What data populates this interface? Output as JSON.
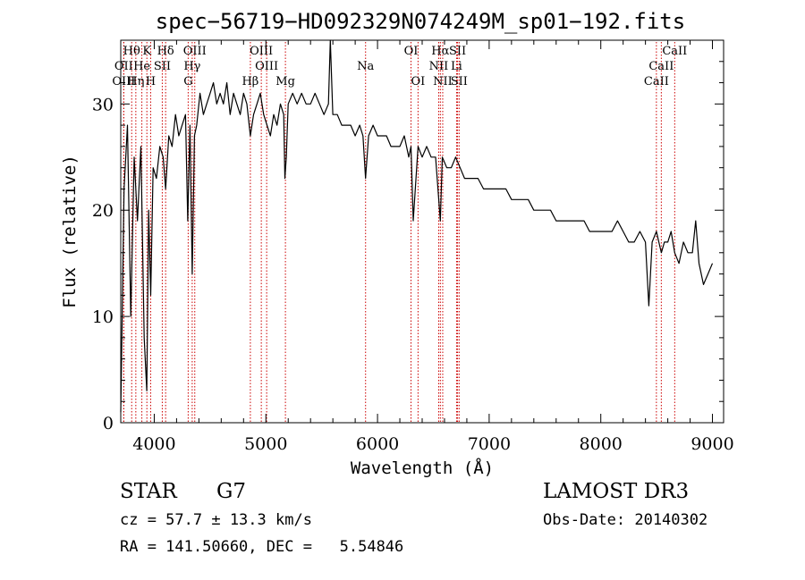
{
  "chart_data": {
    "type": "line",
    "title": "spec−56719−HD092329N074249M_sp01−192.fits",
    "xlabel": "Wavelength (Å)",
    "ylabel": "Flux (relative)",
    "xlim": [
      3700,
      9100
    ],
    "ylim": [
      0,
      36
    ],
    "xticks": [
      4000,
      5000,
      6000,
      7000,
      8000,
      9000
    ],
    "xtick_labels": [
      "4000",
      "5000",
      "6000",
      "7000",
      "8000",
      "9000"
    ],
    "yticks": [
      0,
      10,
      20,
      30
    ],
    "ytick_labels": [
      "0",
      "10",
      "20",
      "30"
    ],
    "series": [
      {
        "name": "spectrum",
        "x": [
          3700,
          3730,
          3760,
          3790,
          3820,
          3850,
          3880,
          3910,
          3933,
          3950,
          3968,
          3990,
          4020,
          4050,
          4080,
          4102,
          4130,
          4160,
          4190,
          4220,
          4250,
          4280,
          4300,
          4320,
          4340,
          4360,
          4380,
          4410,
          4440,
          4470,
          4500,
          4530,
          4560,
          4590,
          4620,
          4650,
          4680,
          4710,
          4740,
          4770,
          4800,
          4830,
          4861,
          4890,
          4920,
          4950,
          4980,
          5010,
          5040,
          5070,
          5100,
          5130,
          5160,
          5170,
          5183,
          5200,
          5240,
          5280,
          5320,
          5360,
          5400,
          5440,
          5480,
          5520,
          5560,
          5577,
          5600,
          5640,
          5680,
          5720,
          5760,
          5800,
          5840,
          5870,
          5893,
          5920,
          5960,
          6000,
          6040,
          6080,
          6120,
          6160,
          6200,
          6240,
          6280,
          6300,
          6320,
          6363,
          6400,
          6440,
          6480,
          6520,
          6563,
          6580,
          6620,
          6660,
          6700,
          6740,
          6780,
          6820,
          6860,
          6900,
          6950,
          7000,
          7050,
          7100,
          7150,
          7200,
          7250,
          7300,
          7350,
          7400,
          7450,
          7500,
          7550,
          7600,
          7650,
          7700,
          7750,
          7800,
          7850,
          7900,
          7950,
          8000,
          8050,
          8100,
          8150,
          8200,
          8250,
          8300,
          8350,
          8400,
          8430,
          8460,
          8498,
          8520,
          8542,
          8570,
          8600,
          8630,
          8662,
          8700,
          8740,
          8780,
          8820,
          8850,
          8880,
          8920,
          8960,
          9000
        ],
        "values": [
          1,
          22,
          28,
          10,
          25,
          19,
          26,
          8,
          3,
          20,
          12,
          24,
          23,
          26,
          25,
          22,
          27,
          26,
          29,
          27,
          28,
          29,
          19,
          28,
          14,
          27,
          28,
          31,
          29,
          30,
          31,
          32,
          30,
          31,
          30,
          32,
          29,
          31,
          30,
          29,
          31,
          30,
          27,
          29,
          30,
          31,
          29,
          28,
          27,
          29,
          28,
          30,
          29,
          23,
          25,
          30,
          31,
          30,
          31,
          30,
          30,
          31,
          30,
          29,
          30,
          36,
          29,
          29,
          28,
          28,
          28,
          27,
          28,
          27,
          23,
          27,
          28,
          27,
          27,
          27,
          26,
          26,
          26,
          27,
          25,
          26,
          19,
          26,
          25,
          26,
          25,
          25,
          19,
          25,
          24,
          24,
          25,
          24,
          23,
          23,
          23,
          23,
          22,
          22,
          22,
          22,
          22,
          21,
          21,
          21,
          21,
          20,
          20,
          20,
          20,
          19,
          19,
          19,
          19,
          19,
          19,
          18,
          18,
          18,
          18,
          18,
          19,
          18,
          17,
          17,
          18,
          17,
          11,
          17,
          18,
          17,
          16,
          17,
          17,
          18,
          16,
          15,
          17,
          16,
          16,
          19,
          15,
          13,
          14,
          15
        ]
      }
    ],
    "spectral_lines": [
      {
        "name": "Hθ",
        "wavelength": 3798,
        "row": 1
      },
      {
        "name": "K",
        "wavelength": 3934,
        "row": 1
      },
      {
        "name": "Hδ",
        "wavelength": 4102,
        "row": 1
      },
      {
        "name": "OIII",
        "wavelength": 4363,
        "row": 1
      },
      {
        "name": "OIII",
        "wavelength": 4959,
        "row": 1
      },
      {
        "name": "OI",
        "wavelength": 6300,
        "row": 1
      },
      {
        "name": "Hα",
        "wavelength": 6563,
        "row": 1
      },
      {
        "name": "SII",
        "wavelength": 6717,
        "row": 1
      },
      {
        "name": "CaII",
        "wavelength": 8662,
        "row": 1
      },
      {
        "name": "OII",
        "wavelength": 3727,
        "row": 2
      },
      {
        "name": "He",
        "wavelength": 3889,
        "row": 2
      },
      {
        "name": "SII",
        "wavelength": 4072,
        "row": 2
      },
      {
        "name": "Hγ",
        "wavelength": 4340,
        "row": 2
      },
      {
        "name": "OIII",
        "wavelength": 5007,
        "row": 2
      },
      {
        "name": "Na",
        "wavelength": 5893,
        "row": 2
      },
      {
        "name": "NII",
        "wavelength": 6548,
        "row": 2
      },
      {
        "name": "Li",
        "wavelength": 6708,
        "row": 2
      },
      {
        "name": "CaII",
        "wavelength": 8542,
        "row": 2
      },
      {
        "name": "OIII",
        "wavelength": 3727,
        "row": 3
      },
      {
        "name": "Hη",
        "wavelength": 3835,
        "row": 3
      },
      {
        "name": "H",
        "wavelength": 3968,
        "row": 3
      },
      {
        "name": "G",
        "wavelength": 4304,
        "row": 3
      },
      {
        "name": "Hβ",
        "wavelength": 4861,
        "row": 3
      },
      {
        "name": "Mg",
        "wavelength": 5175,
        "row": 3
      },
      {
        "name": "OI",
        "wavelength": 6363,
        "row": 3
      },
      {
        "name": "NII",
        "wavelength": 6584,
        "row": 3
      },
      {
        "name": "SII",
        "wavelength": 6731,
        "row": 3
      },
      {
        "name": "CaII",
        "wavelength": 8498,
        "row": 3
      }
    ]
  },
  "info": {
    "object_class": "STAR",
    "subclass": "G7",
    "cz": "cz = 57.7 ± 13.3 km/s",
    "coords": "RA = 141.50660, DEC =   5.54846",
    "survey": "LAMOST DR3",
    "obs_date": "Obs-Date: 20140302"
  },
  "colors": {
    "spectrum": "#000000",
    "line_marker": "#cc0000",
    "axes": "#000000"
  }
}
